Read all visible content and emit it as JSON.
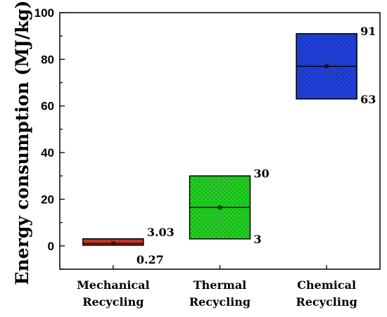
{
  "chart_data": {
    "type": "box",
    "ylabel": "Energy consumption (MJ/kg)",
    "ylim": [
      -10,
      100
    ],
    "yticks": [
      0,
      20,
      40,
      60,
      80,
      100
    ],
    "categories": [
      "Mechanical Recycling",
      "Thermal Recycling",
      "Chemical Recycling"
    ],
    "boxes": [
      {
        "category": "Mechanical Recycling",
        "low": 0.27,
        "high": 3.03,
        "median": 1.0,
        "mean": 1.0,
        "color": "#c0392b",
        "low_label": "0.27",
        "high_label": "3.03"
      },
      {
        "category": "Thermal Recycling",
        "low": 3,
        "high": 30,
        "median": 16.5,
        "mean": 16.5,
        "color": "#22cc22",
        "low_label": "3",
        "high_label": "30"
      },
      {
        "category": "Chemical Recycling",
        "low": 63,
        "high": 91,
        "median": 77,
        "mean": 77,
        "color": "#1f3fd6",
        "low_label": "63",
        "high_label": "91"
      }
    ],
    "grid": false,
    "legend": "none"
  }
}
